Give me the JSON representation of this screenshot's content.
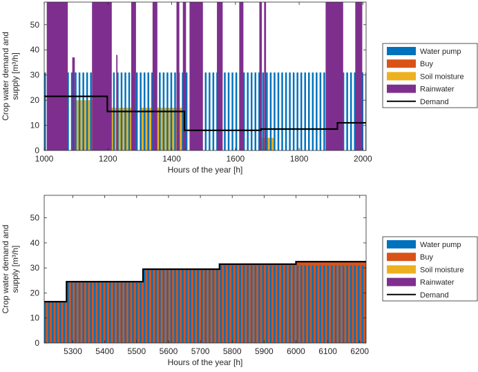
{
  "chart_data": [
    {
      "type": "area",
      "xlabel": "Hours of the year [h]",
      "ylabel_lines": [
        "Crop water demand and",
        "supply [m³/h]"
      ],
      "xlim": [
        1000,
        2010
      ],
      "ylim": [
        0,
        59
      ],
      "xticks": [
        1000,
        1200,
        1400,
        1600,
        1800,
        2000
      ],
      "yticks": [
        0,
        10,
        20,
        30,
        40,
        50
      ],
      "grid": false,
      "legend_position": "right",
      "legend": [
        "Water pump",
        "Buy",
        "Soil moisture",
        "Rainwater",
        "Demand"
      ],
      "pump_level": 31,
      "pump_period_h": 12,
      "pump_on_fraction": 0.45,
      "series": [
        {
          "name": "Demand",
          "kind": "step",
          "steps": [
            [
              1000,
              21.5
            ],
            [
              1198,
              15.5
            ],
            [
              1440,
              8
            ],
            [
              1680,
              8.5
            ],
            [
              1920,
              11
            ],
            [
              2010,
              11
            ]
          ]
        },
        {
          "name": "Soil moisture",
          "kind": "bands",
          "bands": [
            [
              1090,
              1200,
              20
            ],
            [
              1200,
              1290,
              17
            ],
            [
              1300,
              1440,
              17
            ],
            [
              1680,
              1720,
              5
            ]
          ]
        },
        {
          "name": "Rainwater",
          "kind": "bands",
          "bands": [
            [
              1008,
              1074,
              59
            ],
            [
              1088,
              1096,
              37
            ],
            [
              1150,
              1212,
              59
            ],
            [
              1226,
              1230,
              38
            ],
            [
              1273,
              1288,
              59
            ],
            [
              1340,
              1355,
              59
            ],
            [
              1415,
              1424,
              59
            ],
            [
              1435,
              1445,
              59
            ],
            [
              1456,
              1498,
              59
            ],
            [
              1542,
              1560,
              59
            ],
            [
              1612,
              1625,
              59
            ],
            [
              1675,
              1683,
              59
            ],
            [
              1690,
              1696,
              59
            ],
            [
              1883,
              1938,
              59
            ],
            [
              1976,
              1998,
              59
            ]
          ]
        },
        {
          "name": "Water pump",
          "kind": "pulses",
          "gaps": [
            [
              1008,
              1074
            ],
            [
              1150,
              1212
            ],
            [
              1273,
              1288
            ],
            [
              1340,
              1355
            ],
            [
              1456,
              1498
            ],
            [
              1883,
              1938
            ],
            [
              1976,
              1998
            ]
          ]
        }
      ]
    },
    {
      "type": "area",
      "xlabel": "Hours of the year [h]",
      "ylabel_lines": [
        "Crop water demand and",
        "supply [m³/h]"
      ],
      "xlim": [
        5210,
        6220
      ],
      "ylim": [
        0,
        59
      ],
      "xticks": [
        5300,
        5400,
        5500,
        5600,
        5700,
        5800,
        5900,
        6000,
        6100,
        6200
      ],
      "yticks": [
        0,
        10,
        20,
        30,
        40,
        50
      ],
      "grid": false,
      "legend_position": "right",
      "legend": [
        "Water pump",
        "Buy",
        "Soil moisture",
        "Rainwater",
        "Demand"
      ],
      "pump_level": 31,
      "pump_period_h": 12,
      "pump_on_fraction": 0.45,
      "series": [
        {
          "name": "Demand",
          "kind": "step",
          "steps": [
            [
              5210,
              16.5
            ],
            [
              5280,
              24.5
            ],
            [
              5520,
              29.5
            ],
            [
              5760,
              31.5
            ],
            [
              6000,
              32.5
            ],
            [
              6220,
              32.5
            ]
          ]
        },
        {
          "name": "Buy",
          "kind": "topup",
          "note_level_source": "demand"
        },
        {
          "name": "Water pump",
          "kind": "pulses",
          "gaps": []
        }
      ]
    }
  ],
  "colors": {
    "water_pump": "#0072bd",
    "buy": "#d95319",
    "soil_moisture": "#edb120",
    "rainwater": "#7e2f8e",
    "demand": "#000000",
    "axis": "#262626",
    "legend_border": "#262626"
  }
}
